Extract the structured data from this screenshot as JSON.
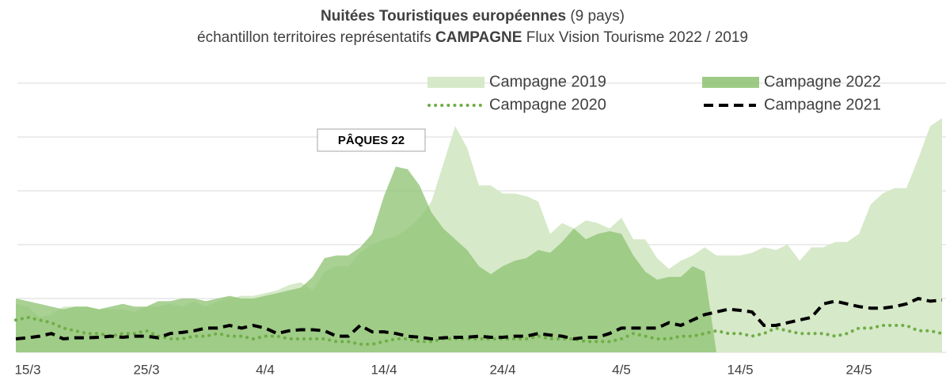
{
  "chart_data": {
    "type": "area",
    "title": {
      "bold": "Nuitées Touristiques européennes",
      "rest": "(9 pays)"
    },
    "subtitle": {
      "before": "échantillon territoires représentatifs",
      "bold": "CAMPAGNE",
      "after": "Flux Vision Tourisme 2022 / 2019"
    },
    "annotation": "PÂQUES 22",
    "categories": [
      null,
      "15/3",
      null,
      null,
      null,
      null,
      null,
      null,
      null,
      null,
      null,
      "25/3",
      null,
      null,
      null,
      null,
      null,
      null,
      null,
      null,
      null,
      "4/4",
      null,
      null,
      null,
      null,
      null,
      null,
      null,
      null,
      null,
      "14/4",
      null,
      null,
      null,
      null,
      null,
      null,
      null,
      null,
      null,
      "24/4",
      null,
      null,
      null,
      null,
      null,
      null,
      null,
      null,
      null,
      "4/5",
      null,
      null,
      null,
      null,
      null,
      null,
      null,
      null,
      null,
      "14/5",
      null,
      null,
      null,
      null,
      null,
      null,
      null,
      null,
      null,
      "24/5",
      null,
      null,
      null,
      null,
      null,
      null,
      null
    ],
    "ylim": [
      0,
      5
    ],
    "yticks": [
      0,
      1,
      2,
      3,
      4,
      5
    ],
    "grid": true,
    "series": [
      {
        "name": "Campagne 2019",
        "style": "area",
        "color": "#d6e9c9",
        "values": [
          0.9,
          0.85,
          0.65,
          0.7,
          0.85,
          0.85,
          0.85,
          0.8,
          0.8,
          0.8,
          0.75,
          0.85,
          0.85,
          0.9,
          0.85,
          0.95,
          0.85,
          0.95,
          1.0,
          1.05,
          1.05,
          1.1,
          1.15,
          1.25,
          1.3,
          1.15,
          1.5,
          1.6,
          1.6,
          1.85,
          2.0,
          2.1,
          2.15,
          2.3,
          2.5,
          2.8,
          3.5,
          4.2,
          3.8,
          3.1,
          3.1,
          2.95,
          2.95,
          2.9,
          2.8,
          2.2,
          2.4,
          2.3,
          2.45,
          2.4,
          2.3,
          2.5,
          2.1,
          2.1,
          1.75,
          1.55,
          1.7,
          1.8,
          1.95,
          1.8,
          1.8,
          1.8,
          1.85,
          1.95,
          1.9,
          2.0,
          1.7,
          1.95,
          1.95,
          2.05,
          2.05,
          2.2,
          2.75,
          2.95,
          3.05,
          3.05,
          3.6,
          4.2,
          4.35
        ]
      },
      {
        "name": "Campagne 2022",
        "style": "area",
        "color": "#8cc270",
        "values": [
          1.0,
          0.95,
          0.9,
          0.85,
          0.8,
          0.85,
          0.85,
          0.8,
          0.85,
          0.9,
          0.85,
          0.85,
          0.95,
          0.95,
          1.0,
          1.0,
          0.95,
          1.0,
          1.05,
          1.0,
          1.0,
          1.05,
          1.1,
          1.15,
          1.2,
          1.4,
          1.75,
          1.8,
          1.8,
          1.95,
          2.2,
          2.9,
          3.45,
          3.4,
          3.1,
          2.6,
          2.3,
          2.1,
          1.9,
          1.6,
          1.45,
          1.6,
          1.7,
          1.75,
          1.9,
          1.85,
          2.05,
          2.3,
          2.1,
          2.2,
          2.25,
          2.2,
          1.8,
          1.5,
          1.35,
          1.4,
          1.4,
          1.6,
          1.5,
          0,
          null,
          null,
          null,
          null,
          null,
          null,
          null,
          null,
          null,
          null,
          null,
          null,
          null,
          null,
          null,
          null,
          null,
          null,
          null
        ]
      },
      {
        "name": "Campagne 2020",
        "style": "dotted",
        "color": "#70ad47",
        "values": [
          0.6,
          0.65,
          0.6,
          0.55,
          0.45,
          0.4,
          0.35,
          0.35,
          0.3,
          0.35,
          0.35,
          0.4,
          0.3,
          0.25,
          0.25,
          0.3,
          0.3,
          0.35,
          0.3,
          0.3,
          0.25,
          0.3,
          0.3,
          0.25,
          0.25,
          0.25,
          0.25,
          0.2,
          0.2,
          0.15,
          0.15,
          0.2,
          0.25,
          0.25,
          0.2,
          0.2,
          0.25,
          0.25,
          0.25,
          0.25,
          0.25,
          0.25,
          0.25,
          0.25,
          0.3,
          0.25,
          0.25,
          0.25,
          0.2,
          0.2,
          0.2,
          0.25,
          0.35,
          0.3,
          0.25,
          0.25,
          0.3,
          0.3,
          0.35,
          0.4,
          0.35,
          0.35,
          0.3,
          0.35,
          0.45,
          0.4,
          0.35,
          0.35,
          0.35,
          0.3,
          0.35,
          0.45,
          0.45,
          0.5,
          0.5,
          0.5,
          0.4,
          0.4,
          0.35
        ]
      },
      {
        "name": "Campagne 2021",
        "style": "dashed",
        "color": "#000000",
        "values": [
          0.25,
          0.27,
          0.3,
          0.35,
          0.25,
          0.27,
          0.27,
          0.28,
          0.3,
          0.28,
          0.3,
          0.3,
          0.27,
          0.35,
          0.37,
          0.4,
          0.45,
          0.45,
          0.5,
          0.45,
          0.5,
          0.45,
          0.35,
          0.4,
          0.42,
          0.42,
          0.4,
          0.3,
          0.3,
          0.5,
          0.38,
          0.38,
          0.35,
          0.3,
          0.28,
          0.25,
          0.27,
          0.28,
          0.28,
          0.3,
          0.28,
          0.28,
          0.3,
          0.3,
          0.35,
          0.32,
          0.3,
          0.25,
          0.28,
          0.28,
          0.35,
          0.45,
          0.45,
          0.45,
          0.45,
          0.55,
          0.5,
          0.6,
          0.7,
          0.75,
          0.8,
          0.78,
          0.75,
          0.5,
          0.5,
          0.55,
          0.6,
          0.65,
          0.9,
          0.95,
          0.9,
          0.85,
          0.82,
          0.82,
          0.85,
          0.9,
          1.0,
          0.95,
          0.97
        ]
      }
    ]
  }
}
